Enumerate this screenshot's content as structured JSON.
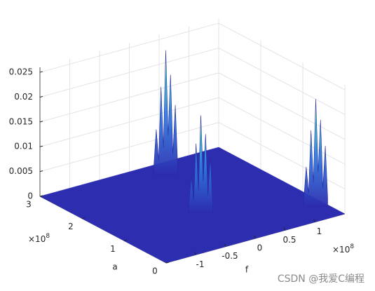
{
  "chart_data": {
    "type": "surface3d",
    "xlabel": "f",
    "ylabel": "a",
    "xlim": [
      -150000000,
      150000000
    ],
    "ylim": [
      0,
      300000000
    ],
    "zlim": [
      0,
      0.026
    ],
    "xticks": [
      {
        "value": -100000000,
        "label": "-1"
      },
      {
        "value": -50000000,
        "label": "-0.5"
      },
      {
        "value": 0,
        "label": "0"
      },
      {
        "value": 50000000,
        "label": "0.5"
      },
      {
        "value": 100000000,
        "label": "1"
      }
    ],
    "yticks": [
      {
        "value": 0,
        "label": "0"
      },
      {
        "value": 100000000,
        "label": "1"
      },
      {
        "value": 200000000,
        "label": "2"
      },
      {
        "value": 300000000,
        "label": "3"
      }
    ],
    "zticks": [
      0,
      0.005,
      0.01,
      0.015,
      0.02,
      0.025
    ],
    "x_exponent": {
      "base": "×10",
      "power": "8"
    },
    "y_exponent": {
      "base": "×10",
      "power": "8"
    },
    "grid": true,
    "color": "#2d2db0",
    "peaks": [
      {
        "x": 40000000,
        "y": 270000000,
        "z": 0.0245
      },
      {
        "x": 0,
        "y": 130000000,
        "z": 0.019
      },
      {
        "x": 140000000,
        "y": 55000000,
        "z": 0.021
      }
    ],
    "watermark": "CSDN @我爱C编程"
  }
}
